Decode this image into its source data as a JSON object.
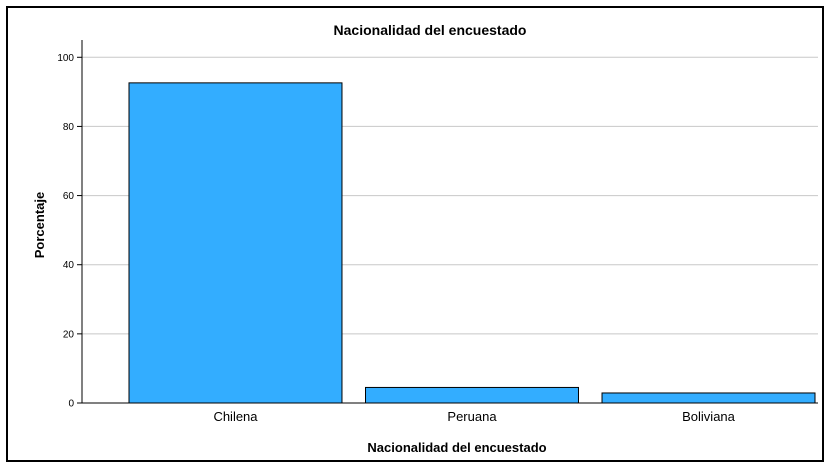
{
  "chart_data": {
    "type": "bar",
    "title": "Nacionalidad del encuestado",
    "xlabel": "Nacionalidad del encuestado",
    "ylabel": "Porcentaje",
    "categories": [
      "Chilena",
      "Peruana",
      "Boliviana"
    ],
    "values": [
      92.6,
      4.5,
      2.9
    ],
    "ylim": [
      0,
      105
    ],
    "yticks": [
      0,
      20,
      40,
      60,
      80,
      100
    ],
    "grid": true,
    "bar_color": "#33adff",
    "bar_stroke": "#000000"
  }
}
